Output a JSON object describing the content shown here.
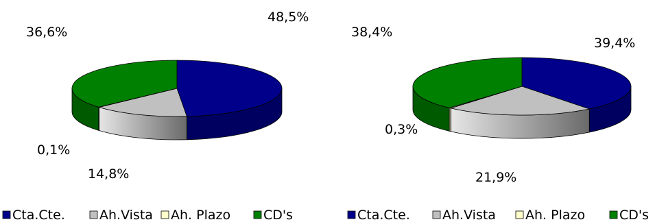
{
  "chart_data": [
    {
      "type": "pie",
      "title": "",
      "categories": [
        "Cta.Cte.",
        "Ah.Vista",
        "Ah. Plazo",
        "CD's"
      ],
      "values": [
        48.5,
        14.8,
        0.1,
        36.6
      ],
      "labels": [
        "48,5%",
        "14,8%",
        "0,1%",
        "36,6%"
      ],
      "legend_position": "bottom"
    },
    {
      "type": "pie",
      "title": "",
      "categories": [
        "Cta.Cte.",
        "Ah.Vista",
        "Ah. Plazo",
        "CD's"
      ],
      "values": [
        39.4,
        21.9,
        0.3,
        38.4
      ],
      "labels": [
        "39,4%",
        "21,9%",
        "0,3%",
        "38,4%"
      ],
      "legend_position": "bottom"
    }
  ],
  "colors": {
    "Cta.Cte.": "#00008b",
    "Ah.Vista": "#c0c0c0",
    "Ah. Plazo": "#ffffcc",
    "CD's": "#008000"
  }
}
